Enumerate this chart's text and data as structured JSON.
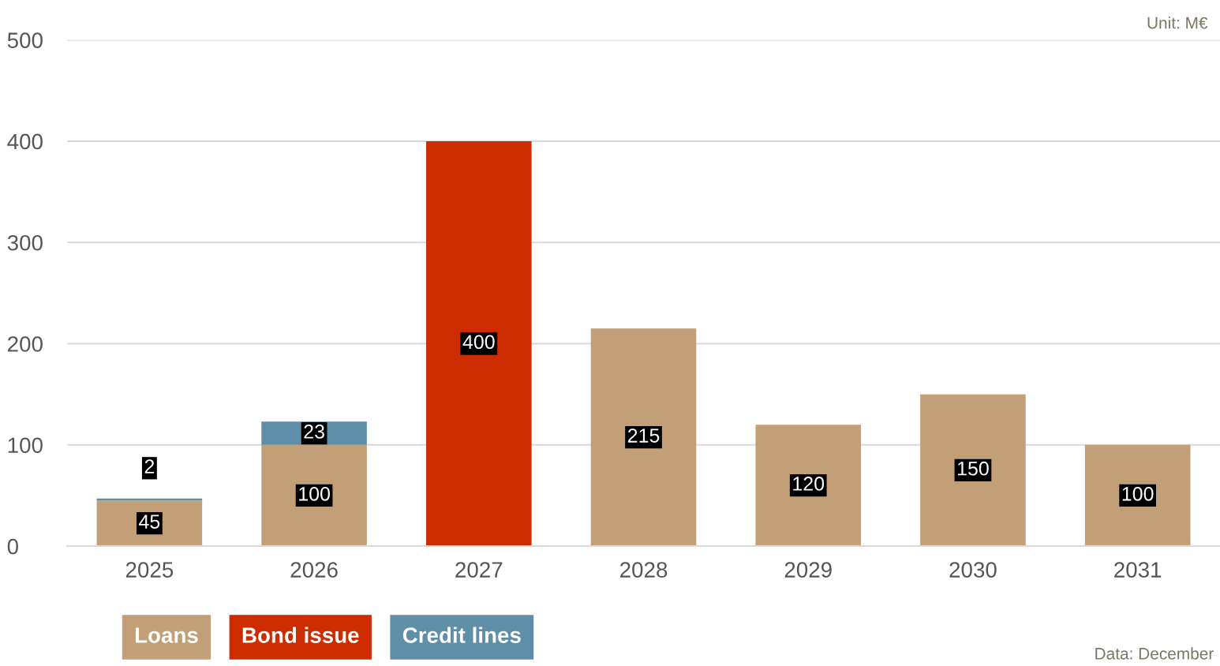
{
  "chart_data": {
    "type": "bar",
    "stacked": true,
    "categories": [
      "2025",
      "2026",
      "2027",
      "2028",
      "2029",
      "2030",
      "2031"
    ],
    "series": [
      {
        "name": "Loans",
        "color": "#c29f77",
        "values": [
          45,
          100,
          null,
          215,
          120,
          150,
          100
        ]
      },
      {
        "name": "Bond issue",
        "color": "#cc2c00",
        "values": [
          null,
          null,
          400,
          null,
          null,
          null,
          null
        ]
      },
      {
        "name": "Credit lines",
        "color": "#5f8fa8",
        "values": [
          2,
          23,
          null,
          null,
          null,
          null,
          null
        ]
      }
    ],
    "ylim": [
      0,
      500
    ],
    "yticks": [
      0,
      100,
      200,
      300,
      400,
      500
    ],
    "grid": "y",
    "data_labels": true,
    "legend": "bottom",
    "annotations": [
      "Unit: M€",
      "Data: December"
    ]
  }
}
